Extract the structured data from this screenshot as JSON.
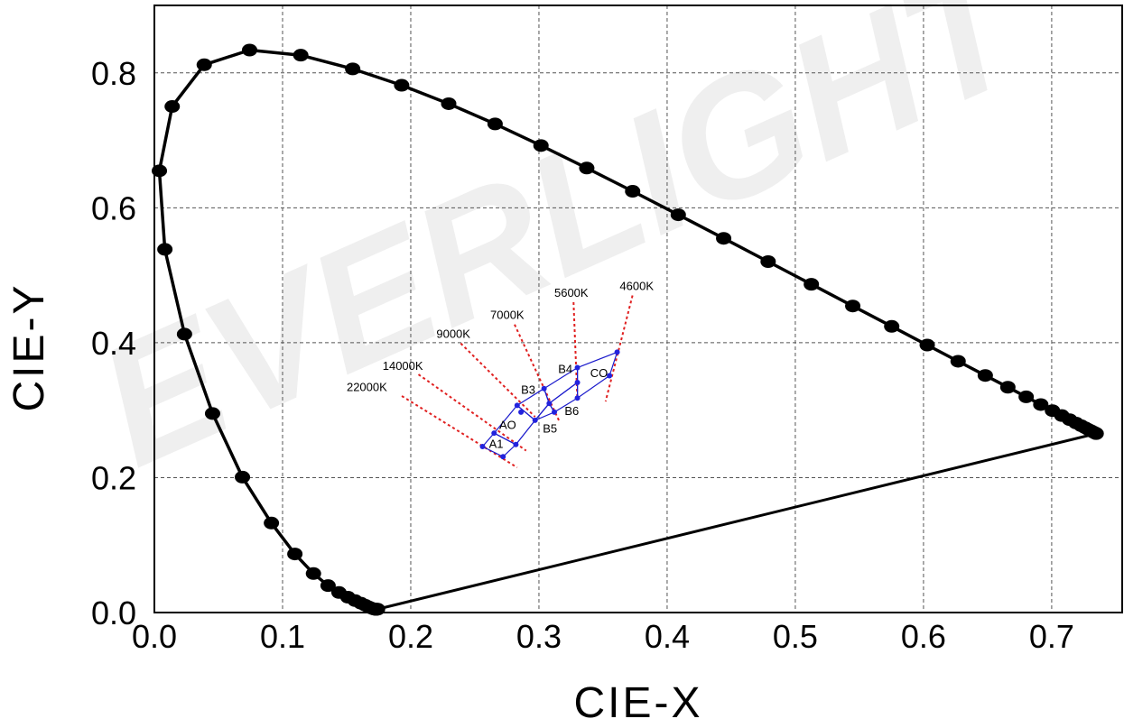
{
  "watermark": "EVERLIGHT",
  "colors": {
    "locus": "#000000",
    "bins": "#1a1acc",
    "bin_points": "#2222dd",
    "cct_lines": "#e02020",
    "grid": "#555555",
    "watermark": "#efefef"
  },
  "chart_data": {
    "type": "scatter",
    "title": "",
    "xlabel": "CIE-X",
    "ylabel": "CIE-Y",
    "xlim": [
      0,
      0.755
    ],
    "ylim": [
      0,
      0.9
    ],
    "xticks": [
      "0.0",
      "0.1",
      "0.2",
      "0.3",
      "0.4",
      "0.5",
      "0.6",
      "0.7"
    ],
    "yticks": [
      "0.0",
      "0.2",
      "0.4",
      "0.6",
      "0.8"
    ],
    "grid": true,
    "locus": [
      [
        0.1741,
        0.005
      ],
      [
        0.1737,
        0.005
      ],
      [
        0.1733,
        0.0048
      ],
      [
        0.173,
        0.0048
      ],
      [
        0.1726,
        0.0048
      ],
      [
        0.1721,
        0.0048
      ],
      [
        0.1714,
        0.0051
      ],
      [
        0.1703,
        0.0058
      ],
      [
        0.1689,
        0.0069
      ],
      [
        0.1669,
        0.0086
      ],
      [
        0.1644,
        0.0109
      ],
      [
        0.1611,
        0.0138
      ],
      [
        0.1566,
        0.0177
      ],
      [
        0.151,
        0.0227
      ],
      [
        0.144,
        0.0297
      ],
      [
        0.1355,
        0.0399
      ],
      [
        0.1241,
        0.0578
      ],
      [
        0.1096,
        0.0868
      ],
      [
        0.0913,
        0.1327
      ],
      [
        0.0687,
        0.2007
      ],
      [
        0.0454,
        0.295
      ],
      [
        0.0235,
        0.4127
      ],
      [
        0.0082,
        0.5384
      ],
      [
        0.0039,
        0.6548
      ],
      [
        0.0139,
        0.7502
      ],
      [
        0.0389,
        0.812
      ],
      [
        0.0743,
        0.8338
      ],
      [
        0.1142,
        0.8262
      ],
      [
        0.1547,
        0.8059
      ],
      [
        0.1929,
        0.7816
      ],
      [
        0.2296,
        0.7543
      ],
      [
        0.2658,
        0.7243
      ],
      [
        0.3016,
        0.6923
      ],
      [
        0.3373,
        0.6589
      ],
      [
        0.3731,
        0.6245
      ],
      [
        0.4087,
        0.5896
      ],
      [
        0.4441,
        0.5547
      ],
      [
        0.4788,
        0.5202
      ],
      [
        0.5125,
        0.4866
      ],
      [
        0.5448,
        0.4544
      ],
      [
        0.5752,
        0.4242
      ],
      [
        0.6029,
        0.3965
      ],
      [
        0.627,
        0.3725
      ],
      [
        0.6482,
        0.3514
      ],
      [
        0.6658,
        0.334
      ],
      [
        0.6801,
        0.3197
      ],
      [
        0.6915,
        0.3083
      ],
      [
        0.7006,
        0.2993
      ],
      [
        0.7079,
        0.292
      ],
      [
        0.714,
        0.2859
      ],
      [
        0.719,
        0.2809
      ],
      [
        0.723,
        0.277
      ],
      [
        0.726,
        0.274
      ],
      [
        0.7283,
        0.2717
      ],
      [
        0.73,
        0.27
      ],
      [
        0.7311,
        0.2689
      ],
      [
        0.732,
        0.268
      ],
      [
        0.7327,
        0.2673
      ],
      [
        0.7334,
        0.2666
      ],
      [
        0.734,
        0.266
      ],
      [
        0.7344,
        0.2656
      ],
      [
        0.7346,
        0.2654
      ],
      [
        0.7347,
        0.2653
      ]
    ],
    "bins": [
      {
        "label": "A1",
        "points": [
          [
            0.256,
            0.246
          ],
          [
            0.265,
            0.266
          ],
          [
            0.282,
            0.249
          ],
          [
            0.272,
            0.231
          ]
        ]
      },
      {
        "label": "AO",
        "points": [
          [
            0.265,
            0.266
          ],
          [
            0.283,
            0.307
          ],
          [
            0.297,
            0.285
          ],
          [
            0.282,
            0.249
          ]
        ]
      },
      {
        "label": "B3",
        "points": [
          [
            0.283,
            0.307
          ],
          [
            0.304,
            0.332
          ],
          [
            0.308,
            0.31
          ],
          [
            0.297,
            0.285
          ]
        ]
      },
      {
        "label": "B5",
        "points": [
          [
            0.297,
            0.285
          ],
          [
            0.308,
            0.31
          ],
          [
            0.312,
            0.297
          ],
          [
            0.297,
            0.285
          ]
        ]
      },
      {
        "label": "B4",
        "points": [
          [
            0.304,
            0.332
          ],
          [
            0.33,
            0.363
          ],
          [
            0.33,
            0.341
          ],
          [
            0.308,
            0.31
          ]
        ]
      },
      {
        "label": "B6",
        "points": [
          [
            0.308,
            0.31
          ],
          [
            0.33,
            0.341
          ],
          [
            0.33,
            0.318
          ],
          [
            0.312,
            0.297
          ]
        ]
      },
      {
        "label": "CO",
        "points": [
          [
            0.33,
            0.363
          ],
          [
            0.361,
            0.386
          ],
          [
            0.355,
            0.351
          ],
          [
            0.33,
            0.318
          ]
        ]
      }
    ],
    "bin_labels": [
      {
        "text": "A1",
        "x": 0.261,
        "y": 0.244
      },
      {
        "text": "AO",
        "x": 0.269,
        "y": 0.272
      },
      {
        "text": "B5",
        "x": 0.303,
        "y": 0.267
      },
      {
        "text": "B6",
        "x": 0.32,
        "y": 0.293
      },
      {
        "text": "B3",
        "x": 0.286,
        "y": 0.324
      },
      {
        "text": "B4",
        "x": 0.315,
        "y": 0.355
      },
      {
        "text": "CO",
        "x": 0.34,
        "y": 0.349
      }
    ],
    "bin_points": [
      [
        0.256,
        0.246
      ],
      [
        0.265,
        0.266
      ],
      [
        0.282,
        0.249
      ],
      [
        0.272,
        0.231
      ],
      [
        0.283,
        0.307
      ],
      [
        0.297,
        0.285
      ],
      [
        0.304,
        0.332
      ],
      [
        0.308,
        0.31
      ],
      [
        0.312,
        0.297
      ],
      [
        0.286,
        0.297
      ],
      [
        0.33,
        0.363
      ],
      [
        0.33,
        0.341
      ],
      [
        0.33,
        0.318
      ],
      [
        0.361,
        0.386
      ],
      [
        0.355,
        0.351
      ]
    ],
    "cct_lines": [
      {
        "label": "22000K",
        "from": [
          0.193,
          0.321
        ],
        "to": [
          0.283,
          0.215
        ],
        "label_at": [
          0.15,
          0.328
        ]
      },
      {
        "label": "14000K",
        "from": [
          0.206,
          0.353
        ],
        "to": [
          0.29,
          0.24
        ],
        "label_at": [
          0.178,
          0.36
        ]
      },
      {
        "label": "9000K",
        "from": [
          0.239,
          0.399
        ],
        "to": [
          0.297,
          0.29
        ],
        "label_at": [
          0.22,
          0.407
        ]
      },
      {
        "label": "7000K",
        "from": [
          0.281,
          0.427
        ],
        "to": [
          0.316,
          0.283
        ],
        "label_at": [
          0.262,
          0.435
        ]
      },
      {
        "label": "5600K",
        "from": [
          0.327,
          0.46
        ],
        "to": [
          0.33,
          0.315
        ],
        "label_at": [
          0.312,
          0.468
        ]
      },
      {
        "label": "4600K",
        "from": [
          0.373,
          0.47
        ],
        "to": [
          0.352,
          0.313
        ],
        "label_at": [
          0.363,
          0.478
        ]
      }
    ]
  }
}
